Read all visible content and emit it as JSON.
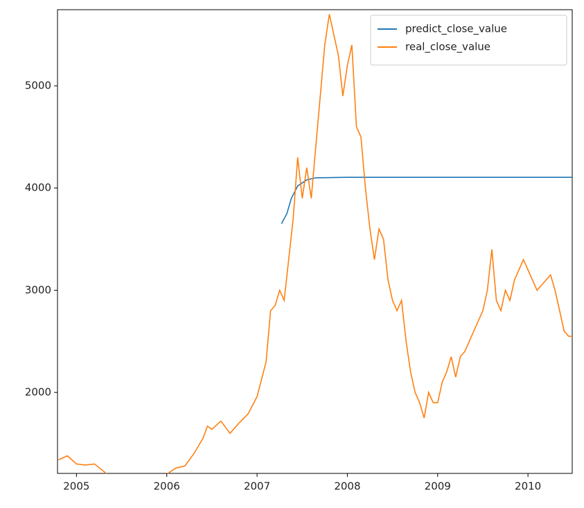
{
  "chart_data": {
    "type": "line",
    "xlim": [
      2004.79,
      2010.49
    ],
    "ylim": [
      1208,
      5745
    ],
    "xticks": [
      2005,
      2006,
      2007,
      2008,
      2009,
      2010
    ],
    "yticks": [
      2000,
      3000,
      4000,
      5000
    ],
    "legend": "upper right",
    "series": [
      {
        "name": "predict_close_value",
        "color": "#1f77b4",
        "x": [
          2007.27,
          2007.33,
          2007.38,
          2007.45,
          2007.55,
          2007.65,
          2008.0,
          2009.0,
          2010.49
        ],
        "values": [
          3650,
          3750,
          3900,
          4020,
          4080,
          4100,
          4105,
          4105,
          4105
        ]
      },
      {
        "name": "real_close_value",
        "color": "#ff7f0e",
        "x": [
          2004.8,
          2004.9,
          2005.0,
          2005.1,
          2005.2,
          2005.3,
          2005.4,
          2005.5,
          2005.6,
          2005.7,
          2005.8,
          2005.9,
          2006.0,
          2006.1,
          2006.2,
          2006.3,
          2006.4,
          2006.45,
          2006.5,
          2006.6,
          2006.7,
          2006.8,
          2006.9,
          2007.0,
          2007.1,
          2007.15,
          2007.2,
          2007.25,
          2007.3,
          2007.35,
          2007.4,
          2007.45,
          2007.5,
          2007.55,
          2007.6,
          2007.65,
          2007.7,
          2007.75,
          2007.8,
          2007.85,
          2007.9,
          2007.95,
          2008.0,
          2008.05,
          2008.1,
          2008.15,
          2008.2,
          2008.25,
          2008.3,
          2008.35,
          2008.4,
          2008.45,
          2008.5,
          2008.55,
          2008.6,
          2008.65,
          2008.7,
          2008.75,
          2008.8,
          2008.85,
          2008.9,
          2008.95,
          2009.0,
          2009.05,
          2009.1,
          2009.15,
          2009.2,
          2009.25,
          2009.3,
          2009.4,
          2009.5,
          2009.55,
          2009.6,
          2009.65,
          2009.7,
          2009.75,
          2009.8,
          2009.85,
          2009.9,
          2009.95,
          2010.0,
          2010.05,
          2010.1,
          2010.15,
          2010.2,
          2010.25,
          2010.3,
          2010.35,
          2010.4,
          2010.45,
          2010.49
        ],
        "values": [
          1340,
          1380,
          1300,
          1290,
          1300,
          1230,
          1150,
          1100,
          1130,
          1190,
          1120,
          1110,
          1200,
          1260,
          1280,
          1400,
          1550,
          1670,
          1640,
          1720,
          1600,
          1700,
          1790,
          1960,
          2300,
          2800,
          2850,
          3000,
          2900,
          3300,
          3700,
          4300,
          3900,
          4200,
          3900,
          4400,
          4900,
          5400,
          5700,
          5500,
          5300,
          4900,
          5200,
          5400,
          4600,
          4500,
          4000,
          3600,
          3300,
          3600,
          3500,
          3100,
          2900,
          2800,
          2900,
          2500,
          2200,
          2000,
          1900,
          1750,
          2000,
          1900,
          1900,
          2100,
          2200,
          2350,
          2150,
          2350,
          2400,
          2600,
          2800,
          3000,
          3400,
          2900,
          2800,
          3000,
          2900,
          3100,
          3200,
          3300,
          3200,
          3100,
          3000,
          3050,
          3100,
          3150,
          3000,
          2800,
          2600,
          2550,
          2550
        ]
      }
    ]
  }
}
